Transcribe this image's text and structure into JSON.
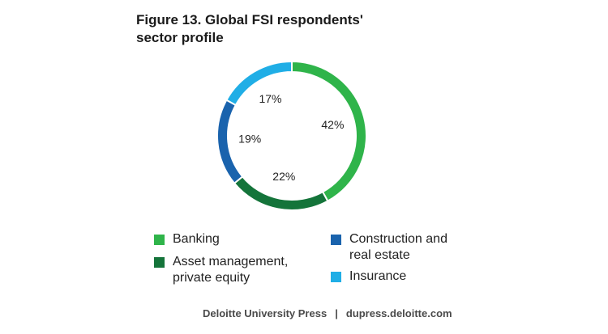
{
  "title": {
    "line1": "Figure 13. Global FSI respondents'",
    "line2": "sector profile"
  },
  "chart_data": {
    "type": "pie",
    "categories": [
      "Banking",
      "Asset management, private equity",
      "Construction and real estate",
      "Insurance"
    ],
    "values": [
      42,
      22,
      19,
      17
    ],
    "data_labels": [
      "42%",
      "22%",
      "19%",
      "17%"
    ],
    "colors": [
      "#2fb44a",
      "#14743a",
      "#1a63ad",
      "#20aee6"
    ],
    "legend_position": "bottom"
  },
  "legend": {
    "banking": {
      "line1": "Banking"
    },
    "asset": {
      "line1": "Asset management,",
      "line2": "private equity"
    },
    "construction": {
      "line1": "Construction and",
      "line2": "real estate"
    },
    "insurance": {
      "line1": "Insurance"
    }
  },
  "footer": {
    "publisher": "Deloitte University Press",
    "separator": "|",
    "site": "dupress.deloitte.com"
  }
}
